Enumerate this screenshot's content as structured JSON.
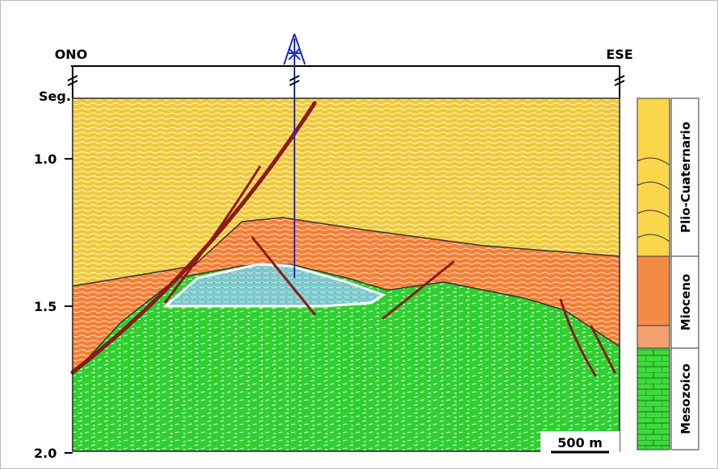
{
  "header": {
    "left": "ONO",
    "right": "ESE"
  },
  "axis": {
    "unit": "Seg.",
    "ticks": [
      "1.0",
      "1.5",
      "2.0"
    ]
  },
  "scale_bar": "500 m",
  "column": {
    "units": [
      "Plio-Cuaternario",
      "Mioceno",
      "Mesozoico"
    ]
  }
}
